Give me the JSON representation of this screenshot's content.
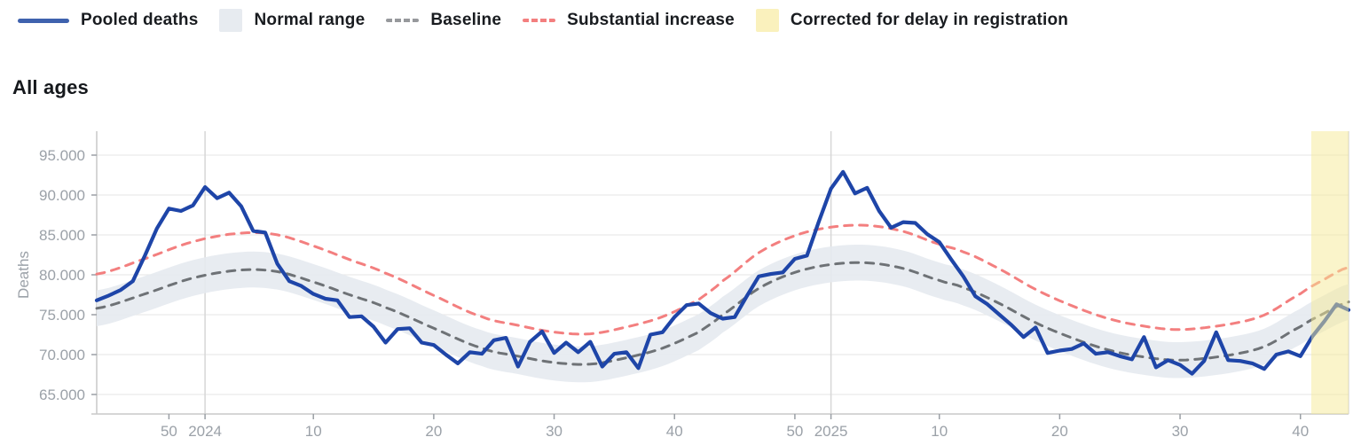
{
  "legend": {
    "items": [
      {
        "label": "Pooled deaths",
        "type": "line",
        "color": "#3f62ae"
      },
      {
        "label": "Normal range",
        "type": "box",
        "color": "#e7ebf0"
      },
      {
        "label": "Baseline",
        "type": "dash",
        "color": "#97999c"
      },
      {
        "label": "Substantial increase",
        "type": "dash",
        "color": "#f37f7f"
      },
      {
        "label": "Corrected for delay in registration",
        "type": "box",
        "color": "#faf1bd"
      }
    ]
  },
  "section": {
    "title": "All ages"
  },
  "chart_data": {
    "type": "line",
    "title": "All ages",
    "xlabel": "",
    "ylabel": "Deaths",
    "grid": true,
    "legend_position": "top-left",
    "ylim": [
      62500,
      98000
    ],
    "y_ticks": {
      "values": [
        95000,
        90000,
        85000,
        80000,
        75000,
        70000,
        65000
      ],
      "labels": [
        "95.000",
        "90.000",
        "85.000",
        "80.000",
        "75.000",
        "70.000",
        "65.000"
      ]
    },
    "weeks_start": "2023-W44",
    "week_count": 105,
    "x_ticks": {
      "labels": [
        "50",
        "2024",
        "10",
        "20",
        "30",
        "40",
        "50",
        "2025",
        "10",
        "20",
        "30",
        "40"
      ],
      "week_index": [
        6,
        9,
        18,
        28,
        38,
        48,
        58,
        61,
        70,
        80,
        90,
        100
      ],
      "year_gridline_index": [
        9,
        61
      ]
    },
    "series": [
      {
        "name": "Pooled deaths",
        "style": "solid",
        "color": "#1e45a8",
        "values": [
          76800,
          77400,
          78100,
          79200,
          82400,
          85800,
          88300,
          88000,
          88700,
          91000,
          89600,
          90300,
          88600,
          85500,
          85300,
          81400,
          79200,
          78600,
          77600,
          77000,
          76800,
          74700,
          74800,
          73500,
          71500,
          73200,
          73300,
          71500,
          71200,
          70000,
          68900,
          70300,
          70100,
          71800,
          72100,
          68500,
          71600,
          72900,
          70200,
          71500,
          70300,
          71600,
          68500,
          70100,
          70300,
          68300,
          72500,
          72800,
          74700,
          76200,
          76400,
          75200,
          74500,
          74700,
          77300,
          79800,
          80100,
          80300,
          82000,
          82400,
          86700,
          90800,
          92900,
          90200,
          90900,
          88000,
          85900,
          86600,
          86500,
          85100,
          84100,
          81900,
          79800,
          77300,
          76300,
          75000,
          73700,
          72200,
          73400,
          70200,
          70500,
          70700,
          71400,
          70100,
          70300,
          69800,
          69400,
          72200,
          68400,
          69300,
          68700,
          67600,
          69200,
          72800,
          69300,
          69200,
          68900,
          68200,
          70000,
          70400,
          69800,
          72300,
          74200,
          76300,
          75600
        ]
      },
      {
        "name": "Baseline",
        "style": "dashed",
        "color": "#6e7276",
        "anchors": [
          [
            0,
            75800
          ],
          [
            4,
            77600
          ],
          [
            8,
            79600
          ],
          [
            12,
            80600
          ],
          [
            15,
            80400
          ],
          [
            18,
            79100
          ],
          [
            21,
            77500
          ],
          [
            24,
            75900
          ],
          [
            28,
            73300
          ],
          [
            32,
            70800
          ],
          [
            35,
            69800
          ],
          [
            38,
            69000
          ],
          [
            41,
            68800
          ],
          [
            44,
            69600
          ],
          [
            47,
            70800
          ],
          [
            50,
            72800
          ],
          [
            52,
            75000
          ],
          [
            55,
            78300
          ],
          [
            58,
            80300
          ],
          [
            61,
            81300
          ],
          [
            64,
            81500
          ],
          [
            67,
            80800
          ],
          [
            70,
            79300
          ],
          [
            72,
            78400
          ],
          [
            75,
            76400
          ],
          [
            78,
            74000
          ],
          [
            81,
            72100
          ],
          [
            84,
            70600
          ],
          [
            87,
            69700
          ],
          [
            90,
            69300
          ],
          [
            94,
            69900
          ],
          [
            97,
            71000
          ],
          [
            100,
            73500
          ],
          [
            102,
            75200
          ],
          [
            104,
            76600
          ]
        ]
      },
      {
        "name": "Normal range",
        "style": "band",
        "color": "#e5eaf0",
        "halfwidth": 2250
      },
      {
        "name": "Substantial increase",
        "style": "dashed",
        "color": "#f37f7f",
        "offset_base": 3800,
        "offset_scale": 0.07
      }
    ],
    "correction_zone": {
      "label": "Corrected for delay in registration",
      "color": "#f6e996",
      "start_week_index": 100.9,
      "end_week_index": 104
    }
  }
}
